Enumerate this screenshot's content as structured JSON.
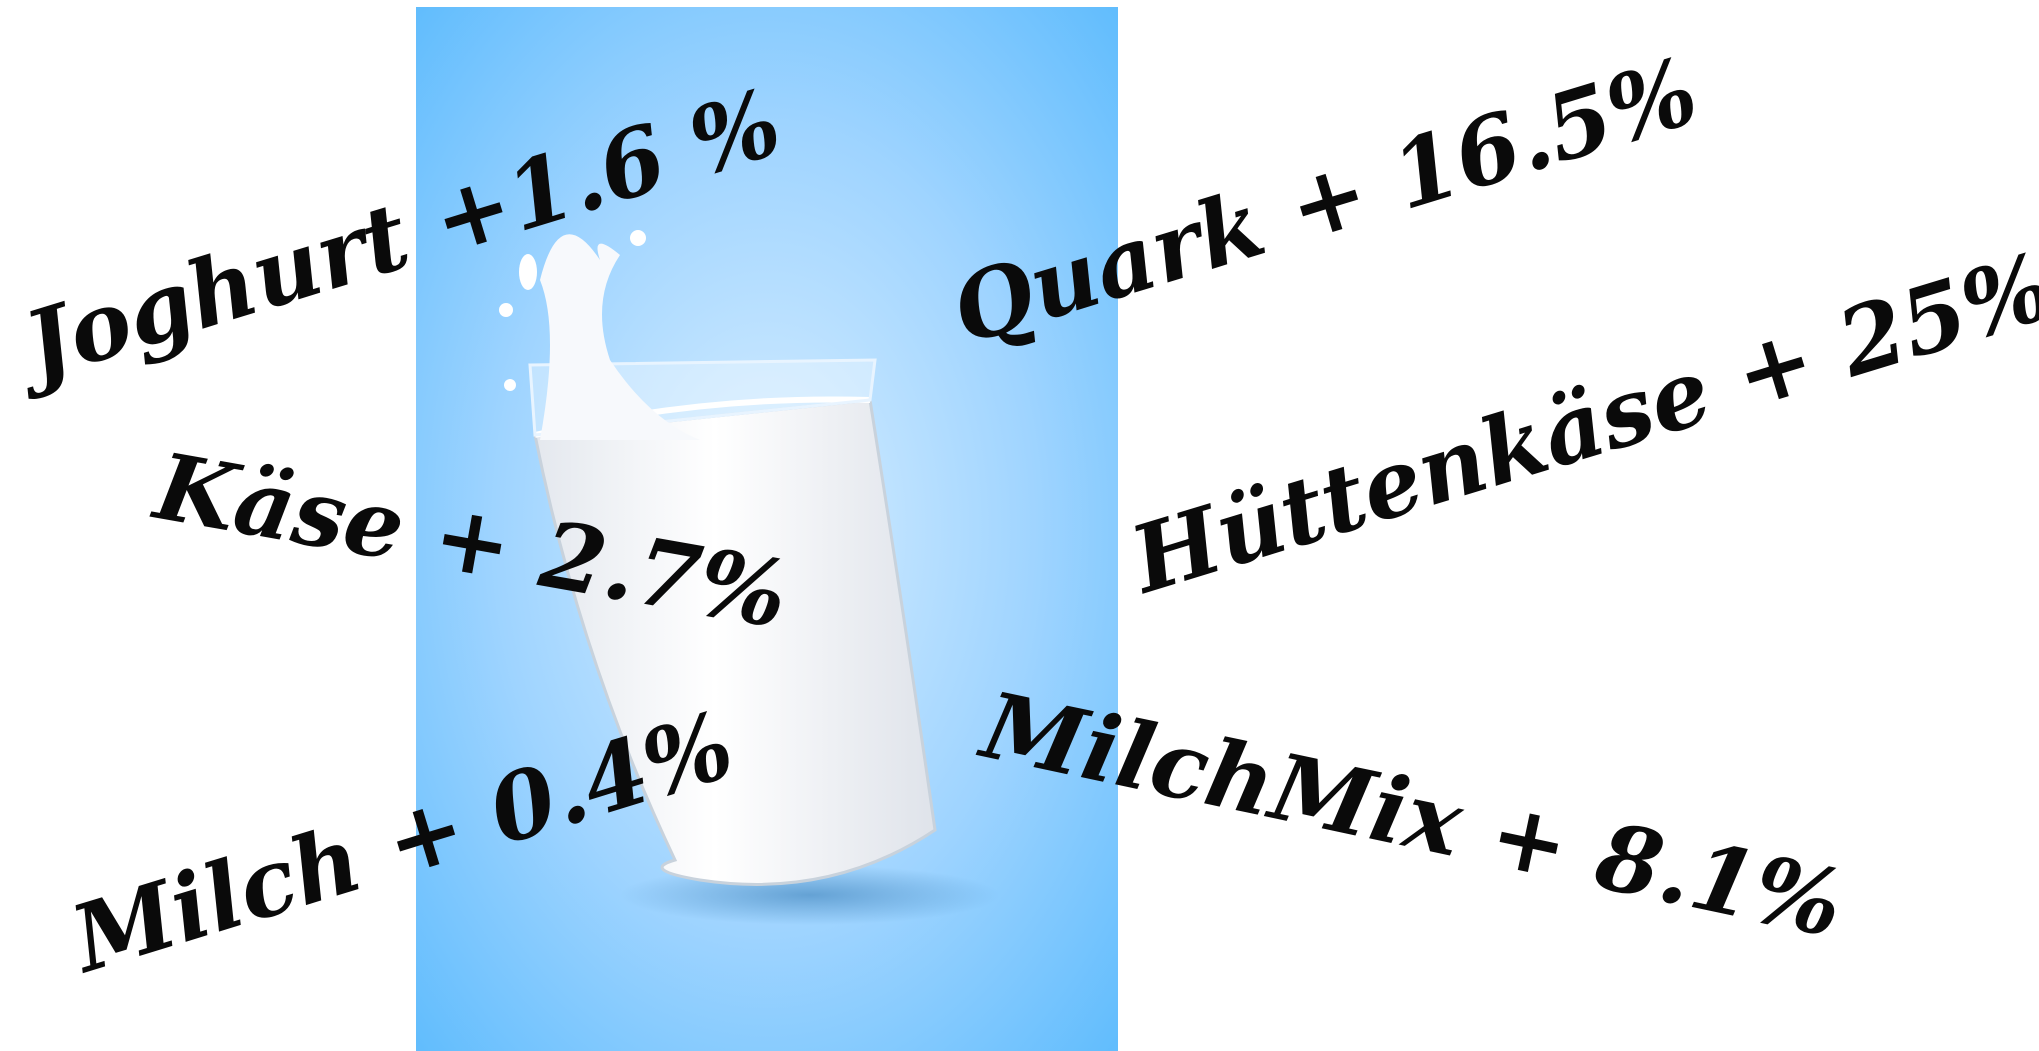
{
  "labels": [
    "Joghurt +1.6 %",
    "Quark + 16.5%",
    "Käse + 2.7%",
    "Hüttenkäse + 25%",
    "Milch + 0.4%",
    "MilchMix + 8.1%"
  ]
}
